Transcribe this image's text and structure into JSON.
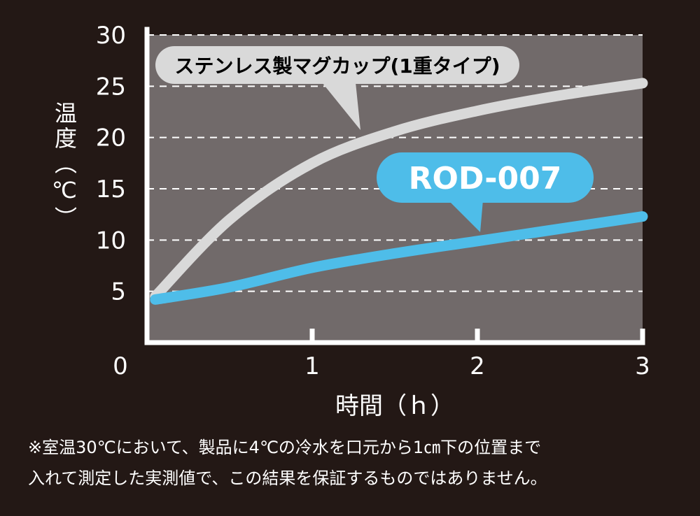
{
  "chart_data": {
    "type": "line",
    "xlabel": "時間（ｈ）",
    "ylabel": "温度（℃）",
    "xlim": [
      0,
      3
    ],
    "ylim": [
      0,
      30
    ],
    "x_ticks": [
      "0",
      "1",
      "2",
      "3"
    ],
    "y_ticks": [
      "5",
      "10",
      "15",
      "20",
      "25",
      "30"
    ],
    "grid": "horizontal-dashed",
    "series": [
      {
        "name": "ステンレス製マグカップ(1重タイプ)",
        "color": "#d9d9d9",
        "x": [
          0.05,
          0.5,
          1.0,
          1.5,
          2.0,
          2.5,
          3.0
        ],
        "y": [
          4.5,
          12.0,
          17.5,
          20.6,
          22.6,
          24.1,
          25.3
        ]
      },
      {
        "name": "ROD-007",
        "color": "#4ebde9",
        "x": [
          0.05,
          0.5,
          1.0,
          1.5,
          2.0,
          2.5,
          3.0
        ],
        "y": [
          4.2,
          5.4,
          7.3,
          8.7,
          9.9,
          11.1,
          12.3
        ]
      }
    ]
  },
  "notes": [
    "※室温30℃において、製品に4℃の冷水を口元から1㎝下の位置まで",
    "入れて測定した実測値で、この結果を保証するものではありません。"
  ]
}
